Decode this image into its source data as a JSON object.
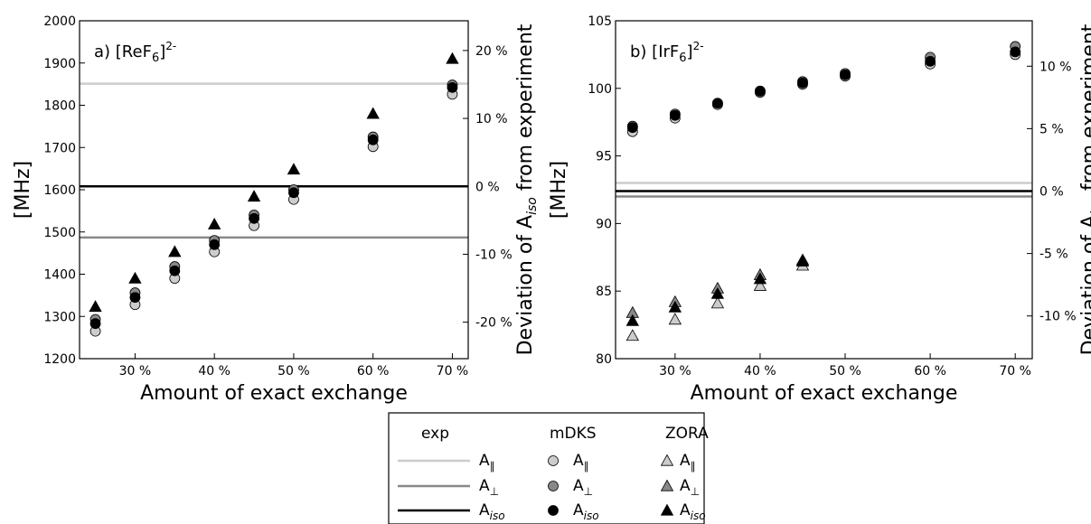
{
  "colors": {
    "light": "#cccccc",
    "mid": "#888888",
    "dark": "#000000"
  },
  "chart_data": [
    {
      "type": "scatter",
      "title_prefix": "a) [ReF",
      "title_sub": "6",
      "title_mid": "]",
      "title_sup": "2-",
      "xlabel": "Amount of exact exchange",
      "ylabel": "[MHz]",
      "ylabel_right_prefix": "Deviation of A",
      "ylabel_right_sub": "iso",
      "ylabel_right_suffix": " from experiment",
      "x": [
        25,
        30,
        35,
        40,
        45,
        50,
        60,
        70
      ],
      "xticks": [
        30,
        40,
        50,
        60,
        70
      ],
      "xtick_labels": [
        "30 %",
        "40 %",
        "50 %",
        "60 %",
        "70 %"
      ],
      "xlim": [
        23,
        72
      ],
      "ylim": [
        1200,
        2000
      ],
      "yticks": [
        1200,
        1300,
        1400,
        1500,
        1600,
        1700,
        1800,
        1900,
        2000
      ],
      "ytick_labels": [
        "1200",
        "1300",
        "1400",
        "1500",
        "1600",
        "1700",
        "1800",
        "1900",
        "2000"
      ],
      "right_ticks": [
        -20,
        -10,
        0,
        10,
        20
      ],
      "right_tick_labels": [
        "-20 %",
        "-10 %",
        "0 %",
        "10 %",
        "20 %"
      ],
      "exp_lines": {
        "A_par": 1851,
        "A_perp": 1487,
        "A_iso": 1608
      },
      "mDKS": {
        "A_par": [
          1265,
          1328,
          1390,
          1453,
          1515,
          1577,
          1702,
          1826
        ],
        "A_perp": [
          1293,
          1356,
          1418,
          1480,
          1540,
          1600,
          1725,
          1848
        ],
        "A_iso": [
          1283,
          1345,
          1408,
          1470,
          1532,
          1593,
          1718,
          1842
        ]
      },
      "ZORA": {
        "A_par": [],
        "A_perp": [],
        "A_iso": [
          1323,
          1390,
          1453,
          1518,
          1584,
          1648,
          1780,
          1910
        ]
      }
    },
    {
      "type": "scatter",
      "title_prefix": "b) [IrF",
      "title_sub": "6",
      "title_mid": "]",
      "title_sup": "2-",
      "xlabel": "Amount of exact exchange",
      "ylabel": "[MHz]",
      "ylabel_right_prefix": "Deviation of A",
      "ylabel_right_sub": "iso",
      "ylabel_right_suffix": " from experiment",
      "x": [
        25,
        30,
        35,
        40,
        45,
        50,
        60,
        70
      ],
      "xticks": [
        30,
        40,
        50,
        60,
        70
      ],
      "xtick_labels": [
        "30 %",
        "40 %",
        "50 %",
        "60 %",
        "70 %"
      ],
      "xlim": [
        23,
        72
      ],
      "ylim": [
        80,
        105
      ],
      "yticks": [
        80,
        85,
        90,
        95,
        100,
        105
      ],
      "ytick_labels": [
        "80",
        "85",
        "90",
        "95",
        "100",
        "105"
      ],
      "right_ticks": [
        -10,
        -5,
        0,
        5,
        10
      ],
      "right_tick_labels": [
        "-10 %",
        "-5 %",
        "0 %",
        "5 %",
        "10 %"
      ],
      "exp_lines": {
        "A_par": 93.0,
        "A_perp": 92.0,
        "A_iso": 92.4
      },
      "mDKS": {
        "A_par": [
          96.8,
          97.8,
          98.8,
          99.7,
          100.3,
          100.9,
          101.8,
          102.5
        ],
        "A_perp": [
          97.2,
          98.1,
          98.9,
          99.8,
          100.5,
          101.1,
          102.3,
          103.1
        ],
        "A_iso": [
          97.1,
          98.0,
          98.9,
          99.8,
          100.4,
          101.0,
          102.0,
          102.7
        ]
      },
      "ZORA": {
        "A_par": [
          81.7,
          82.9,
          84.1,
          85.4,
          86.9
        ],
        "A_perp": [
          83.4,
          84.2,
          85.2,
          86.2,
          87.3
        ],
        "A_iso": [
          82.8,
          83.8,
          84.8,
          85.9,
          87.2
        ]
      }
    }
  ],
  "legend": {
    "headers": [
      "exp",
      "mDKS",
      "ZORA"
    ],
    "entries": [
      {
        "label_main": "A",
        "label_sub": "∥",
        "color_key": "light"
      },
      {
        "label_main": "A",
        "label_sub": "⊥",
        "color_key": "mid"
      },
      {
        "label_main": "A",
        "label_sub": "iso",
        "color_key": "dark"
      }
    ]
  }
}
